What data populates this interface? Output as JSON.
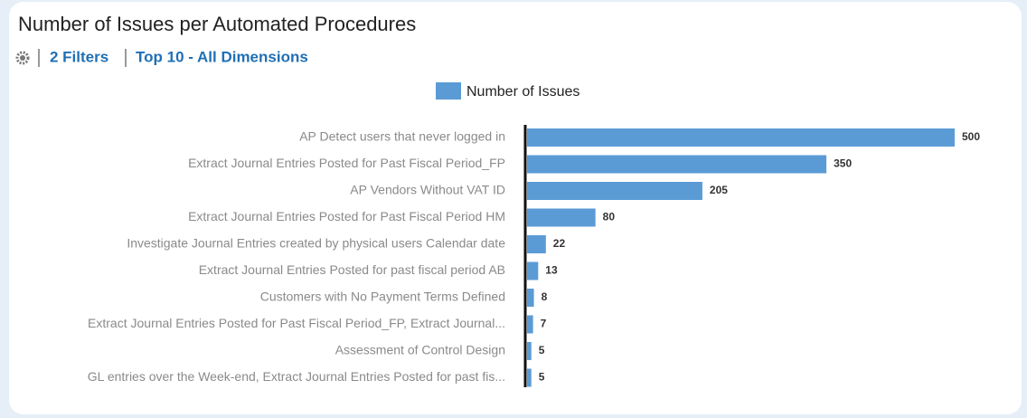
{
  "chart_data": {
    "type": "hbar",
    "title": "Number of Issues per Automated Procedures",
    "toolbar": [
      "2 Filters",
      "Top 10 - All Dimensions"
    ],
    "categories": [
      "AP Detect users that never logged in",
      "Extract Journal Entries Posted for Past Fiscal Period_FP",
      "AP Vendors Without VAT ID",
      "Extract Journal Entries Posted for Past Fiscal Period HM",
      "Investigate Journal Entries created by physical users Calendar date",
      "Extract Journal Entries Posted for past fiscal period AB",
      "Customers with No Payment Terms Defined",
      "Extract Journal Entries Posted for Past Fiscal Period_FP, Extract Journal...",
      "Assessment of Control Design",
      "GL entries over the Week-end, Extract Journal Entries Posted for past fis..."
    ],
    "series": [
      {
        "name": "Number of Issues",
        "color": "#5b9bd5",
        "values": [
          500,
          350,
          205,
          80,
          22,
          13,
          8,
          7,
          5,
          5
        ]
      }
    ]
  }
}
